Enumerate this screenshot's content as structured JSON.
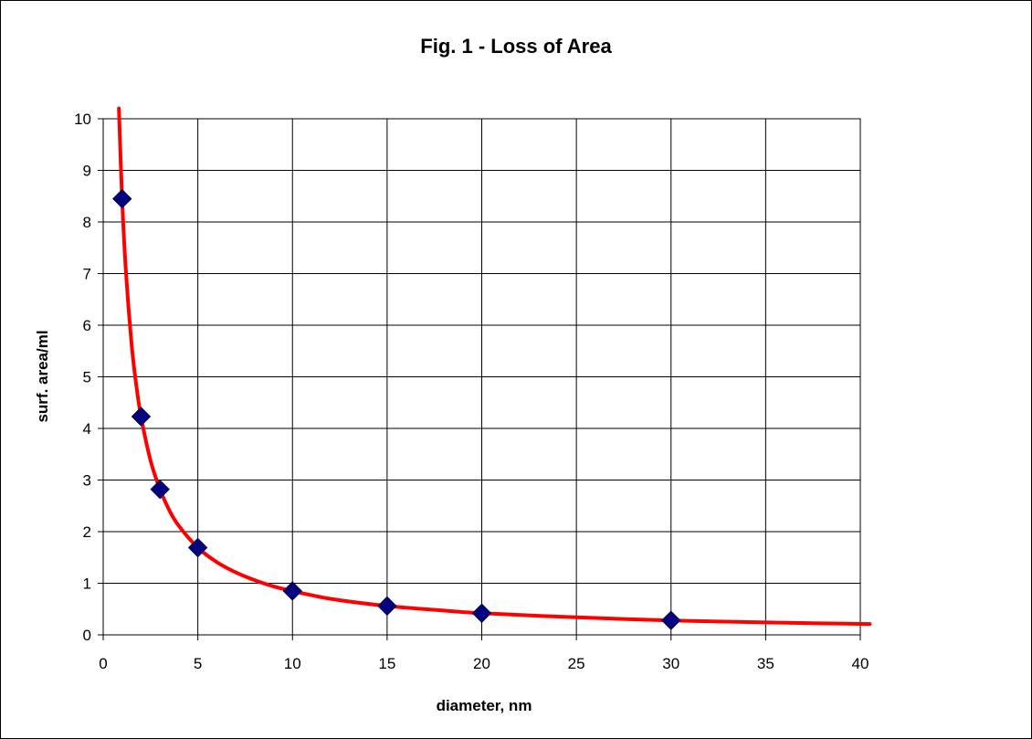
{
  "chart_data": {
    "type": "scatter",
    "title": "Fig. 1 - Loss of Area",
    "xlabel": "diameter, nm",
    "ylabel": "surf. area/ml",
    "xlim": [
      0,
      40
    ],
    "ylim": [
      0,
      10
    ],
    "x_ticks": [
      "0",
      "5",
      "10",
      "15",
      "20",
      "25",
      "30",
      "35",
      "40"
    ],
    "y_ticks": [
      "0",
      "1",
      "2",
      "3",
      "4",
      "5",
      "6",
      "7",
      "8",
      "9",
      "10"
    ],
    "grid": true,
    "legend": "none",
    "series": [
      {
        "kind": "points",
        "marker": "diamond",
        "color": "#000080",
        "x": [
          1,
          2,
          3,
          5,
          10,
          15,
          20,
          30
        ],
        "y": [
          8.45,
          4.23,
          2.82,
          1.69,
          0.85,
          0.56,
          0.42,
          0.28
        ]
      },
      {
        "kind": "fit-line",
        "color": "#ff0000",
        "x": [
          0.83,
          1,
          1.2,
          1.5,
          1.75,
          2,
          2.5,
          3,
          3.5,
          4,
          5,
          6,
          7,
          8,
          9,
          10,
          12,
          15,
          18,
          20,
          25,
          30,
          35,
          40.5
        ],
        "y": [
          10.2,
          8.45,
          7.04,
          5.63,
          4.83,
          4.23,
          3.38,
          2.82,
          2.41,
          2.11,
          1.69,
          1.41,
          1.21,
          1.06,
          0.94,
          0.85,
          0.7,
          0.56,
          0.47,
          0.42,
          0.34,
          0.28,
          0.24,
          0.21
        ]
      }
    ]
  }
}
